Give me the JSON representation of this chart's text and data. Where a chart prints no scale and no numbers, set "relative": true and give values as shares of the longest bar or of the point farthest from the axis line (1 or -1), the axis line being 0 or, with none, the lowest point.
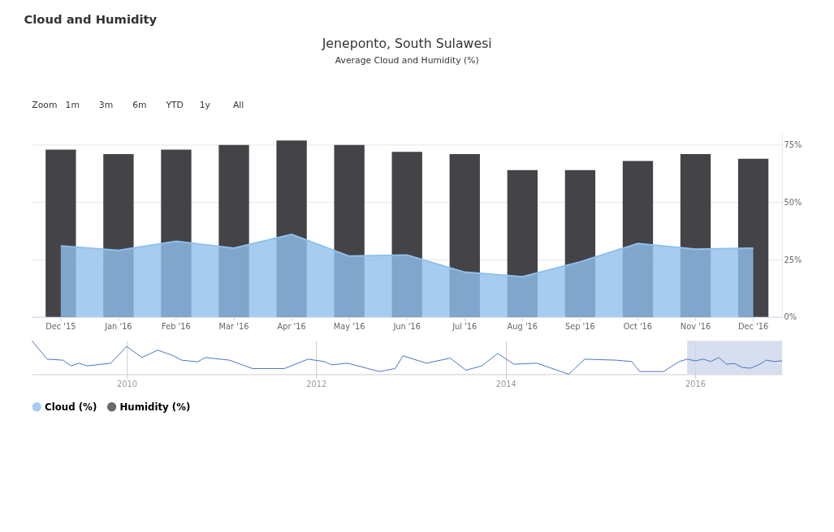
{
  "chart_data": [
    {
      "type": "bar",
      "title": "Jeneponto, South Sulawesi",
      "subtitle": "Average Cloud and Humidity (%)",
      "annotations": [
        "Cloud and Humidity",
        "Zoom",
        "1m",
        "3m",
        "6m",
        "YTD",
        "1y",
        "All"
      ],
      "categories": [
        "Dec '15",
        "Jan '16",
        "Feb '16",
        "Mar '16",
        "Apr '16",
        "May '16",
        "Jun '16",
        "Jul '16",
        "Aug '16",
        "Sep '16",
        "Oct '16",
        "Nov '16",
        "Dec '16"
      ],
      "series": [
        {
          "name": "Cloud (%)",
          "type": "area",
          "color": "#90c0ec",
          "values": [
            31,
            29,
            33,
            30,
            36,
            26.5,
            27,
            19.5,
            17.5,
            24,
            32,
            29.5,
            30
          ]
        },
        {
          "name": "Humidity (%)",
          "type": "bar",
          "color": "#434348",
          "values": [
            73,
            71,
            73,
            75,
            77,
            75,
            72,
            71,
            64,
            64,
            68,
            71,
            69
          ]
        }
      ],
      "ylim": [
        0,
        80
      ],
      "yticks": [
        {
          "value": 0,
          "label": "0%"
        },
        {
          "value": 25,
          "label": "25%"
        },
        {
          "value": 50,
          "label": "50%"
        },
        {
          "value": 75,
          "label": "75%"
        }
      ],
      "grid": "y",
      "legend": "bottom"
    },
    {
      "type": "line",
      "relative": true,
      "grid": "x",
      "x": [
        "2009-01",
        "2009-03",
        "2009-05",
        "2009-06",
        "2009-07",
        "2009-08",
        "2009-11",
        "2010-01",
        "2010-03",
        "2010-05",
        "2010-07",
        "2010-08",
        "2010-10",
        "2010-11",
        "2011-02",
        "2011-05",
        "2011-09",
        "2011-12",
        "2012-02",
        "2012-03",
        "2012-05",
        "2012-09",
        "2012-11",
        "2012-12",
        "2013-03",
        "2013-06",
        "2013-08",
        "2013-10",
        "2013-12",
        "2014-02",
        "2014-05",
        "2014-09",
        "2014-11",
        "2015-03",
        "2015-05",
        "2015-06",
        "2015-09",
        "2015-11",
        "2015-12",
        "2016-01",
        "2016-02",
        "2016-03",
        "2016-04",
        "2016-05",
        "2016-06",
        "2016-07",
        "2016-08",
        "2016-09",
        "2016-10",
        "2016-11",
        "2016-12"
      ],
      "series": [
        {
          "color": "#4572c4",
          "values": [
            1.0,
            0.45,
            0.42,
            0.25,
            0.33,
            0.25,
            0.33,
            0.83,
            0.5,
            0.72,
            0.55,
            0.42,
            0.37,
            0.5,
            0.42,
            0.17,
            0.17,
            0.45,
            0.38,
            0.28,
            0.33,
            0.08,
            0.17,
            0.55,
            0.33,
            0.48,
            0.12,
            0.25,
            0.62,
            0.3,
            0.33,
            0.0,
            0.45,
            0.42,
            0.38,
            0.08,
            0.08,
            0.38,
            0.45,
            0.4,
            0.45,
            0.38,
            0.5,
            0.3,
            0.32,
            0.2,
            0.18,
            0.28,
            0.42,
            0.38,
            0.4
          ]
        }
      ],
      "xlim": [
        "2009-01",
        "2016-12"
      ],
      "xticks": [
        {
          "value": "2010-01",
          "label": "2010"
        },
        {
          "value": "2012-01",
          "label": "2012"
        },
        {
          "value": "2014-01",
          "label": "2014"
        },
        {
          "value": "2016-01",
          "label": "2016"
        }
      ],
      "bands": [
        {
          "axis": "x",
          "from": "2015-12",
          "to": "2016-12",
          "color": "#ccd6eb"
        }
      ]
    }
  ]
}
